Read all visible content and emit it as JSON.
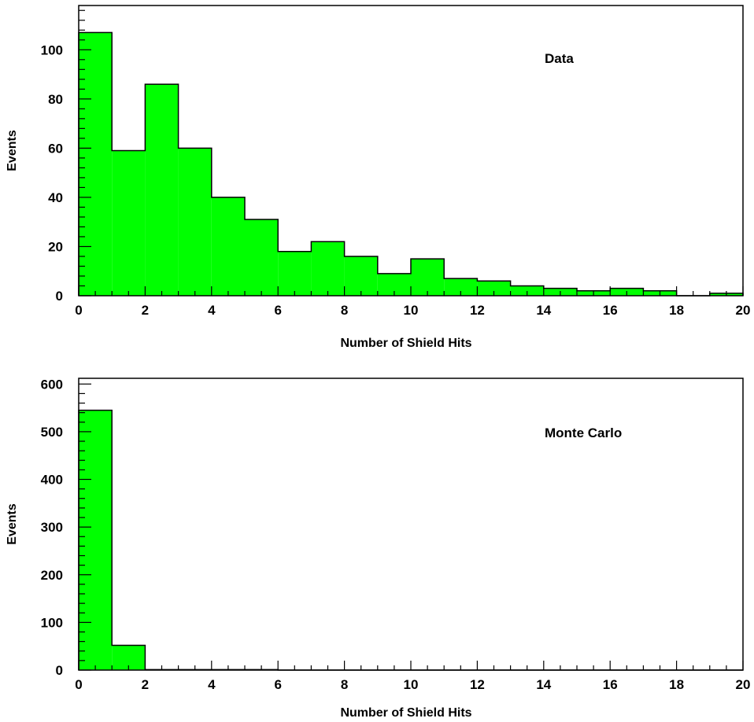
{
  "chart_data": [
    {
      "type": "bar",
      "label": "Data",
      "xlabel": "Number of Shield Hits",
      "ylabel": "Events",
      "xlim": [
        0,
        20
      ],
      "ylim": [
        0,
        118
      ],
      "xticks": [
        0,
        2,
        4,
        6,
        8,
        10,
        12,
        14,
        16,
        18,
        20
      ],
      "yticks": [
        0,
        20,
        40,
        60,
        80,
        100
      ],
      "bin_edges": [
        0,
        1,
        2,
        3,
        4,
        5,
        6,
        7,
        8,
        9,
        10,
        11,
        12,
        13,
        14,
        15,
        16,
        17,
        18,
        19,
        20
      ],
      "values": [
        107,
        59,
        86,
        60,
        40,
        31,
        18,
        22,
        16,
        9,
        15,
        7,
        6,
        4,
        3,
        2,
        3,
        2,
        0,
        1
      ],
      "fill_color": "#00ff00",
      "grid": false
    },
    {
      "type": "bar",
      "label": "Monte Carlo",
      "xlabel": "Number of Shield Hits",
      "ylabel": "Events",
      "xlim": [
        0,
        20
      ],
      "ylim": [
        0,
        612
      ],
      "xticks": [
        0,
        2,
        4,
        6,
        8,
        10,
        12,
        14,
        16,
        18,
        20
      ],
      "yticks": [
        0,
        100,
        200,
        300,
        400,
        500,
        600
      ],
      "bin_edges": [
        0,
        1,
        2,
        3,
        4,
        5,
        6,
        7,
        8,
        9,
        10,
        11,
        12,
        13,
        14,
        15,
        16,
        17,
        18,
        19,
        20
      ],
      "values": [
        545,
        52,
        1,
        1,
        1,
        1,
        0,
        0,
        0,
        0,
        0,
        0,
        0,
        0,
        0,
        0,
        0,
        0,
        0,
        0
      ],
      "fill_color": "#00ff00",
      "grid": false
    }
  ]
}
